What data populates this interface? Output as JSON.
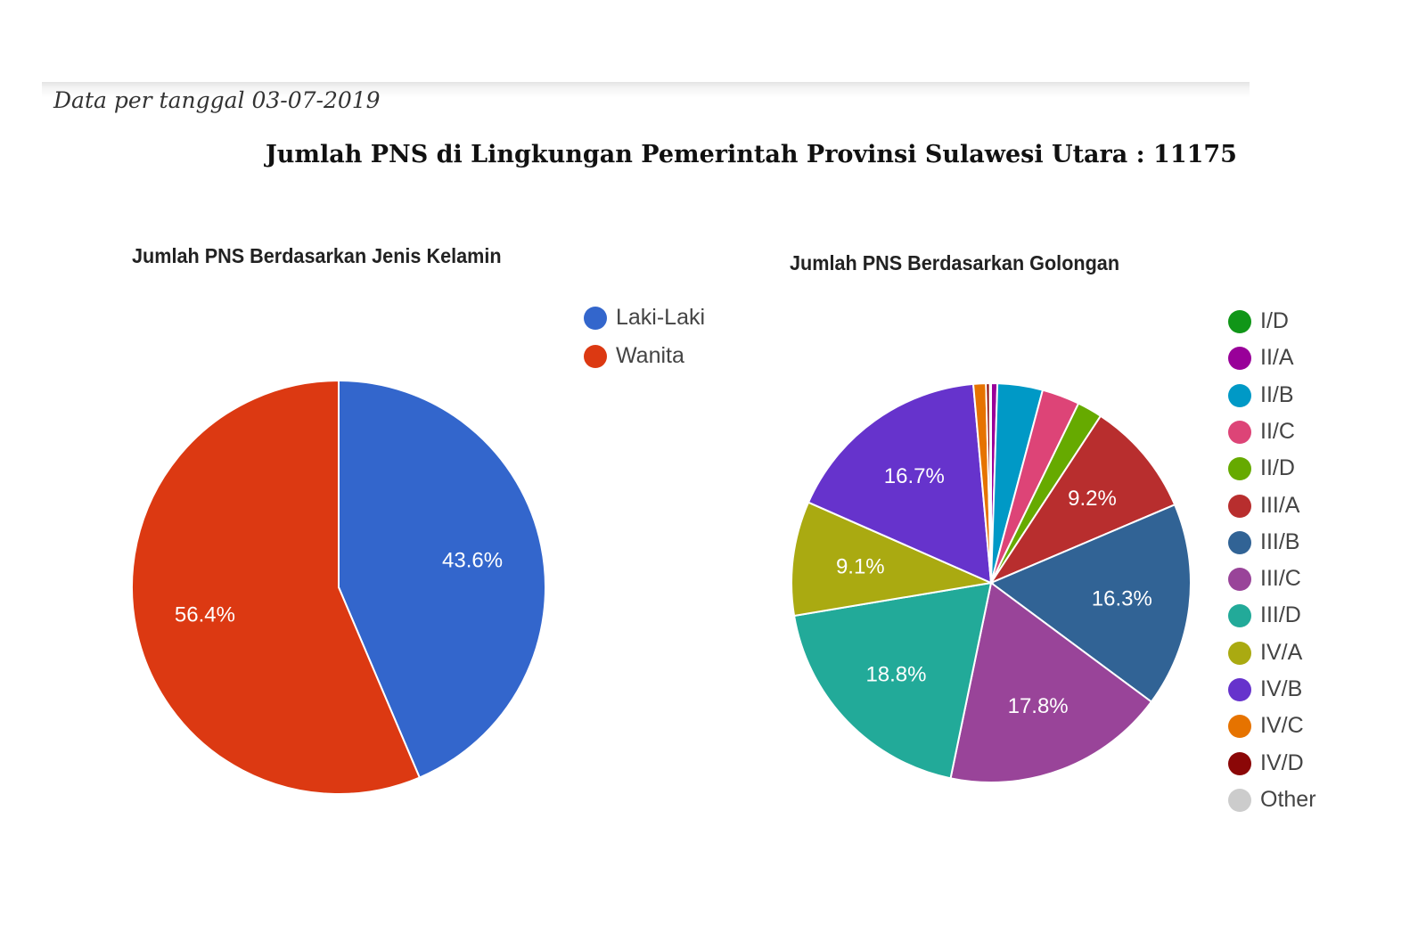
{
  "header": {
    "date_note": "Data per tanggal 03-07-2019",
    "main_title": "Jumlah PNS di Lingkungan Pemerintah Provinsi Sulawesi Utara : 11175"
  },
  "chart_data": [
    {
      "type": "pie",
      "title": "Jumlah PNS Berdasarkan Jenis Kelamin",
      "legend_position": "top-right",
      "slices": [
        {
          "name": "Laki-Laki",
          "value": 43.6,
          "label": "43.6%",
          "color": "#3366cc"
        },
        {
          "name": "Wanita",
          "value": 56.4,
          "label": "56.4%",
          "color": "#dc3912"
        }
      ]
    },
    {
      "type": "pie",
      "title": "Jumlah PNS Berdasarkan Golongan",
      "legend_position": "right",
      "slices": [
        {
          "name": "I/D",
          "value": 0.0,
          "label": "",
          "color": "#109618"
        },
        {
          "name": "II/A",
          "value": 0.5,
          "label": "",
          "color": "#990099"
        },
        {
          "name": "II/B",
          "value": 3.6,
          "label": "",
          "color": "#0099c6"
        },
        {
          "name": "II/C",
          "value": 3.0,
          "label": "",
          "color": "#dd4477"
        },
        {
          "name": "II/D",
          "value": 2.0,
          "label": "",
          "color": "#66aa00"
        },
        {
          "name": "III/A",
          "value": 9.2,
          "label": "9.2%",
          "color": "#b82e2e"
        },
        {
          "name": "III/B",
          "value": 16.3,
          "label": "16.3%",
          "color": "#316395"
        },
        {
          "name": "III/C",
          "value": 17.8,
          "label": "17.8%",
          "color": "#994499"
        },
        {
          "name": "III/D",
          "value": 18.8,
          "label": "18.8%",
          "color": "#22aa99"
        },
        {
          "name": "IV/A",
          "value": 9.1,
          "label": "9.1%",
          "color": "#aaaa11"
        },
        {
          "name": "IV/B",
          "value": 16.7,
          "label": "16.7%",
          "color": "#6633cc"
        },
        {
          "name": "IV/C",
          "value": 1.0,
          "label": "",
          "color": "#e67300"
        },
        {
          "name": "IV/D",
          "value": 0.3,
          "label": "",
          "color": "#8b0707"
        },
        {
          "name": "Other",
          "value": 0.1,
          "label": "",
          "color": "#cccccc"
        }
      ]
    }
  ]
}
